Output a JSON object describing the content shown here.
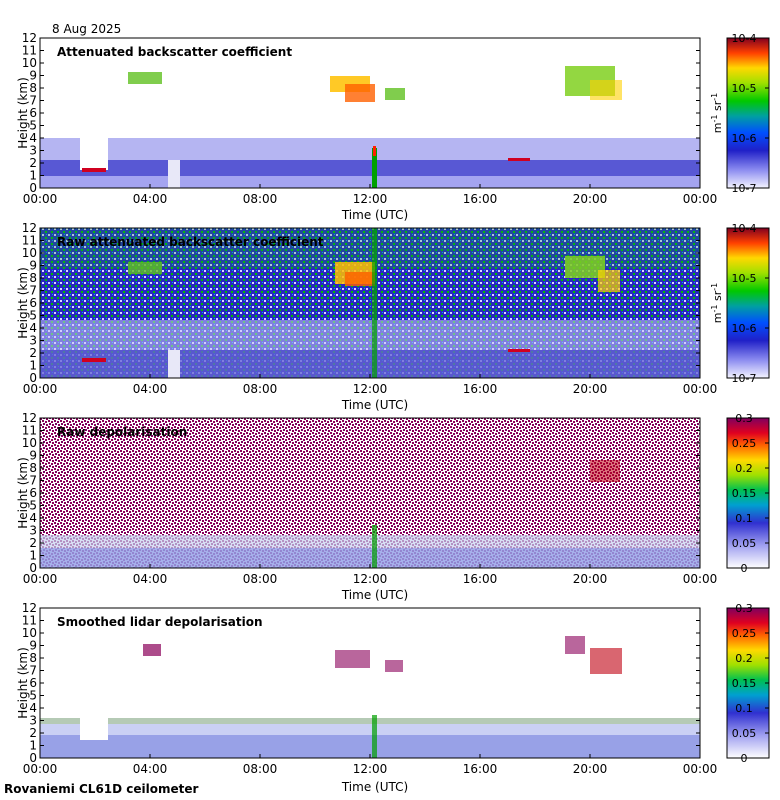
{
  "date_label": "8 Aug 2025",
  "footer_label": "Rovaniemi CL61D ceilometer",
  "chart_data": [
    {
      "type": "heatmap",
      "title": "Attenuated backscatter coefficient",
      "xlabel": "Time (UTC)",
      "ylabel": "Height (km)",
      "xticks": [
        "00:00",
        "04:00",
        "08:00",
        "12:00",
        "16:00",
        "20:00",
        "00:00"
      ],
      "yticks": [
        0,
        1,
        2,
        3,
        4,
        5,
        6,
        7,
        8,
        9,
        10,
        11,
        12
      ],
      "ylim": [
        0,
        12
      ],
      "colorbar": {
        "scale": "log",
        "ticks": [
          "10-7",
          "10-6",
          "10-5",
          "10-4"
        ],
        "unit": "m-1 sr-1"
      }
    },
    {
      "type": "heatmap",
      "title": "Raw attenuated backscatter coefficient",
      "xlabel": "Time (UTC)",
      "ylabel": "Height (km)",
      "xticks": [
        "00:00",
        "04:00",
        "08:00",
        "12:00",
        "16:00",
        "20:00",
        "00:00"
      ],
      "yticks": [
        0,
        1,
        2,
        3,
        4,
        5,
        6,
        7,
        8,
        9,
        10,
        11,
        12
      ],
      "ylim": [
        0,
        12
      ],
      "colorbar": {
        "scale": "log",
        "ticks": [
          "10-7",
          "10-6",
          "10-5",
          "10-4"
        ],
        "unit": "m-1 sr-1"
      }
    },
    {
      "type": "heatmap",
      "title": "Raw depolarisation",
      "xlabel": "Time (UTC)",
      "ylabel": "Height (km)",
      "xticks": [
        "00:00",
        "04:00",
        "08:00",
        "12:00",
        "16:00",
        "20:00",
        "00:00"
      ],
      "yticks": [
        0,
        1,
        2,
        3,
        4,
        5,
        6,
        7,
        8,
        9,
        10,
        11,
        12
      ],
      "ylim": [
        0,
        12
      ],
      "colorbar": {
        "scale": "linear",
        "ticks": [
          "0",
          "0.05",
          "0.1",
          "0.15",
          "0.2",
          "0.25",
          "0.3"
        ],
        "unit": ""
      }
    },
    {
      "type": "heatmap",
      "title": "Smoothed lidar depolarisation",
      "xlabel": "Time (UTC)",
      "ylabel": "Height (km)",
      "xticks": [
        "00:00",
        "04:00",
        "08:00",
        "12:00",
        "16:00",
        "20:00",
        "00:00"
      ],
      "yticks": [
        0,
        1,
        2,
        3,
        4,
        5,
        6,
        7,
        8,
        9,
        10,
        11,
        12
      ],
      "ylim": [
        0,
        12
      ],
      "colorbar": {
        "scale": "linear",
        "ticks": [
          "0",
          "0.05",
          "0.1",
          "0.15",
          "0.2",
          "0.25",
          "0.3"
        ],
        "unit": ""
      }
    }
  ]
}
